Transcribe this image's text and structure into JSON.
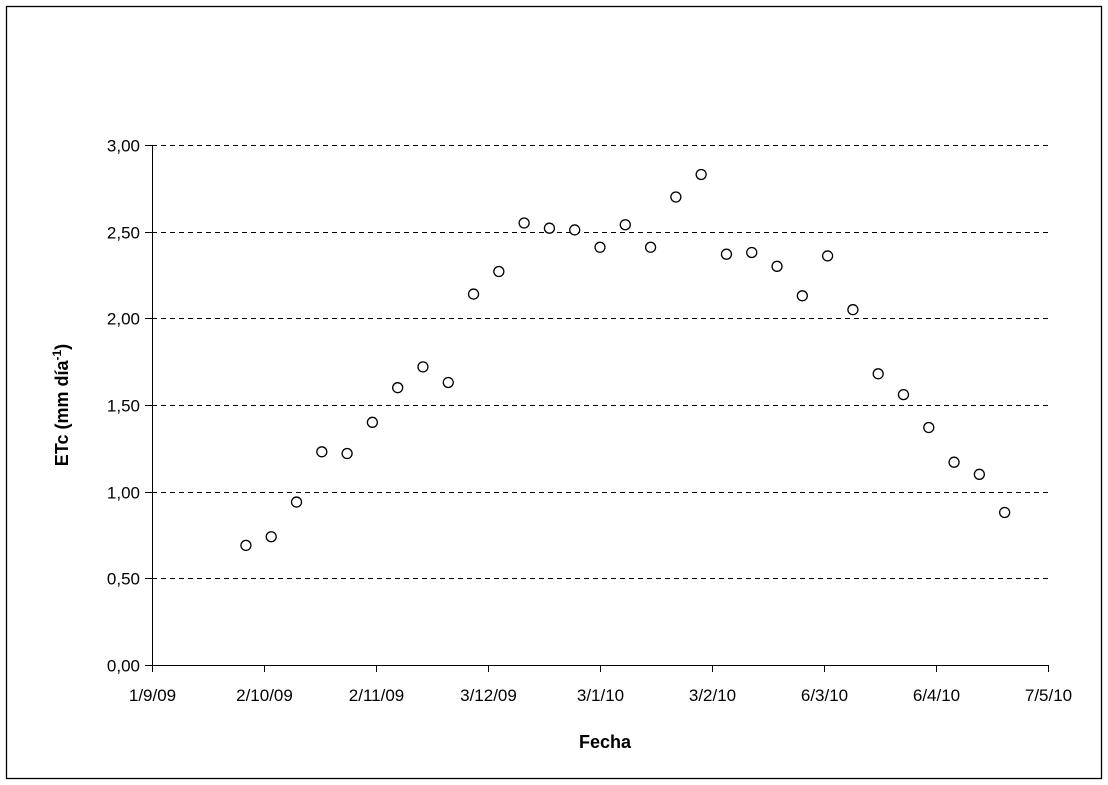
{
  "chart_data": {
    "type": "scatter",
    "title": "",
    "xlabel": "Fecha",
    "ylabel": {
      "main": "ETc (mm día",
      "superscript": "-1",
      "close": ")"
    },
    "y_tick_labels": [
      "0,00",
      "0,50",
      "1,00",
      "1,50",
      "2,00",
      "2,50",
      "3,00"
    ],
    "y_ticks": [
      0,
      0.5,
      1,
      1.5,
      2,
      2.5,
      3
    ],
    "ylim": [
      0,
      3
    ],
    "x_tick_labels": [
      "1/9/09",
      "2/10/09",
      "2/11/09",
      "3/12/09",
      "3/1/10",
      "3/2/10",
      "6/3/10",
      "6/4/10",
      "7/5/10"
    ],
    "x_ticks": [
      "2009-09-01",
      "2009-10-02",
      "2009-11-02",
      "2009-12-03",
      "2010-01-03",
      "2010-02-03",
      "2010-03-06",
      "2010-04-06",
      "2010-05-07"
    ],
    "xlim": [
      "2009-09-01",
      "2010-05-07"
    ],
    "grid": "horizontal dashed",
    "marker": "open circle",
    "series": [
      {
        "points": [
          {
            "x": "2009-09-27",
            "y": 0.69
          },
          {
            "x": "2009-10-04",
            "y": 0.74
          },
          {
            "x": "2009-10-11",
            "y": 0.94
          },
          {
            "x": "2009-10-18",
            "y": 1.23
          },
          {
            "x": "2009-10-25",
            "y": 1.22
          },
          {
            "x": "2009-11-01",
            "y": 1.4
          },
          {
            "x": "2009-11-08",
            "y": 1.6
          },
          {
            "x": "2009-11-15",
            "y": 1.72
          },
          {
            "x": "2009-11-22",
            "y": 1.63
          },
          {
            "x": "2009-11-29",
            "y": 2.14
          },
          {
            "x": "2009-12-06",
            "y": 2.27
          },
          {
            "x": "2009-12-13",
            "y": 2.55
          },
          {
            "x": "2009-12-20",
            "y": 2.52
          },
          {
            "x": "2009-12-27",
            "y": 2.51
          },
          {
            "x": "2010-01-03",
            "y": 2.41
          },
          {
            "x": "2010-01-10",
            "y": 2.54
          },
          {
            "x": "2010-01-17",
            "y": 2.41
          },
          {
            "x": "2010-01-24",
            "y": 2.7
          },
          {
            "x": "2010-01-31",
            "y": 2.83
          },
          {
            "x": "2010-02-07",
            "y": 2.37
          },
          {
            "x": "2010-02-14",
            "y": 2.38
          },
          {
            "x": "2010-02-21",
            "y": 2.3
          },
          {
            "x": "2010-02-28",
            "y": 2.13
          },
          {
            "x": "2010-03-07",
            "y": 2.36
          },
          {
            "x": "2010-03-14",
            "y": 2.05
          },
          {
            "x": "2010-03-21",
            "y": 1.68
          },
          {
            "x": "2010-03-28",
            "y": 1.56
          },
          {
            "x": "2010-04-04",
            "y": 1.37
          },
          {
            "x": "2010-04-11",
            "y": 1.17
          },
          {
            "x": "2010-04-18",
            "y": 1.1
          },
          {
            "x": "2010-04-25",
            "y": 0.88
          }
        ]
      }
    ]
  }
}
